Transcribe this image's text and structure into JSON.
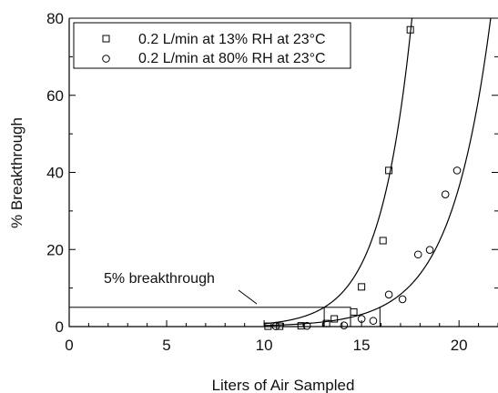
{
  "chart_data": {
    "type": "scatter",
    "title": "",
    "xlabel": "Liters of Air Sampled",
    "ylabel": "% Breakthrough",
    "xlim": [
      0,
      22
    ],
    "ylim": [
      0,
      80
    ],
    "xticks": [
      0,
      5,
      10,
      15,
      20
    ],
    "yticks": [
      0,
      20,
      40,
      60,
      80
    ],
    "xtick_labels": [
      "0",
      "5",
      "10",
      "15",
      "20"
    ],
    "ytick_labels": [
      "0",
      "20",
      "40",
      "60",
      "80"
    ],
    "grid": false,
    "legend_position": "top-left",
    "series": [
      {
        "name": "0.2 L/min at 13% RH at 23°C",
        "marker": "square",
        "points": [
          {
            "x": 10.2,
            "y": 0.1
          },
          {
            "x": 10.8,
            "y": 0.1
          },
          {
            "x": 11.9,
            "y": 0.2
          },
          {
            "x": 13.2,
            "y": 0.8
          },
          {
            "x": 13.6,
            "y": 2.0
          },
          {
            "x": 14.6,
            "y": 3.8
          },
          {
            "x": 15.0,
            "y": 10.3
          },
          {
            "x": 16.1,
            "y": 22.3
          },
          {
            "x": 16.4,
            "y": 40.5
          },
          {
            "x": 17.5,
            "y": 77.0
          }
        ],
        "fit": {
          "a": 0.00158,
          "b": 0.616,
          "x_from": 10,
          "y_to": 80
        }
      },
      {
        "name": "0.2 L/min at 80% RH at 23°C",
        "marker": "circle",
        "points": [
          {
            "x": 10.6,
            "y": 0.1
          },
          {
            "x": 12.2,
            "y": 0.2
          },
          {
            "x": 14.1,
            "y": 0.3
          },
          {
            "x": 15.0,
            "y": 2.0
          },
          {
            "x": 15.6,
            "y": 1.5
          },
          {
            "x": 16.4,
            "y": 8.3
          },
          {
            "x": 17.1,
            "y": 7.1
          },
          {
            "x": 17.9,
            "y": 18.7
          },
          {
            "x": 18.5,
            "y": 19.9
          },
          {
            "x": 19.3,
            "y": 34.3
          },
          {
            "x": 19.9,
            "y": 40.5
          }
        ],
        "fit": {
          "a": 0.00209,
          "b": 0.488,
          "x_from": 10,
          "y_to": 80
        }
      }
    ],
    "annotations": [
      {
        "text": "5% breakthrough",
        "y_level": 5
      }
    ]
  }
}
